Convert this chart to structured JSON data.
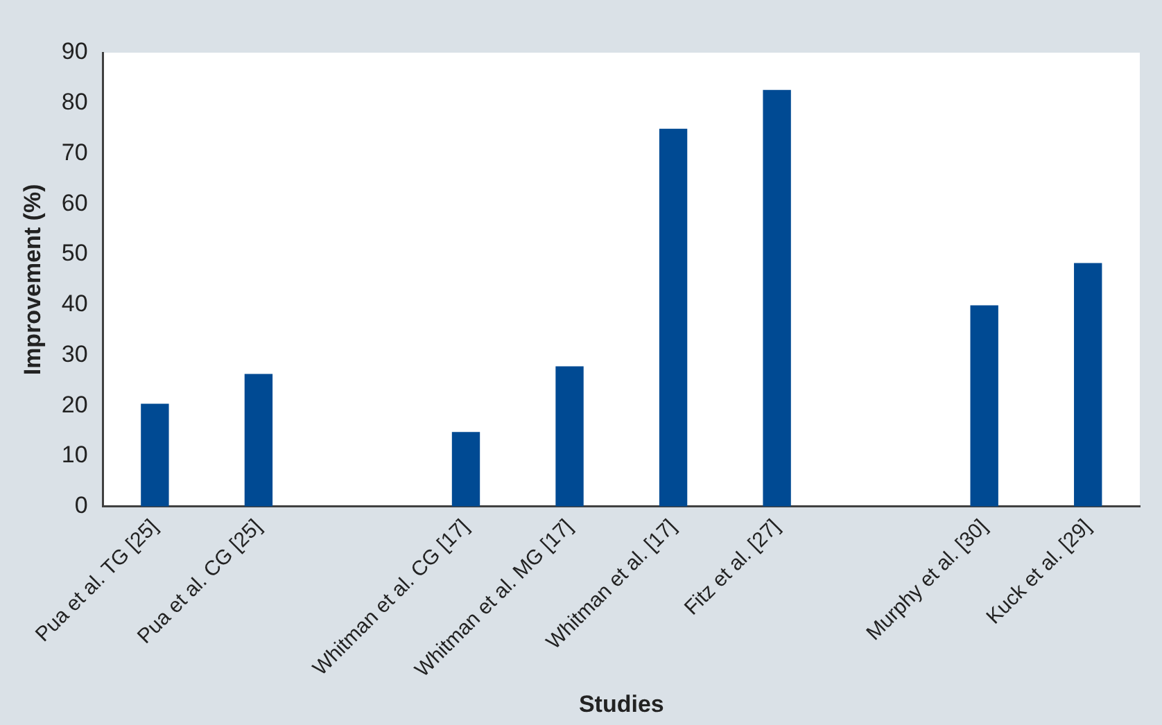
{
  "chart_data": {
    "type": "bar",
    "xlabel": "Studies",
    "ylabel": "Improvement (%)",
    "categories": [
      "Pua et al. TG [25]",
      "Pua et al. CG [25]",
      null,
      "Whitman et al. CG [17]",
      "Whitman et al. MG [17]",
      "Whitman et al. [17]",
      "Fitz et al. [27]",
      null,
      "Murphy et al. [30]",
      "Kuck et al. [29]"
    ],
    "values": [
      20.4,
      26.3,
      null,
      14.8,
      27.8,
      74.9,
      82.6,
      null,
      39.9,
      48.3
    ],
    "color": "#004a93",
    "ylim": [
      0,
      90
    ],
    "yticks": [
      0,
      10,
      20,
      30,
      40,
      50,
      60,
      70,
      80,
      90
    ],
    "grid": false,
    "legend": false
  }
}
